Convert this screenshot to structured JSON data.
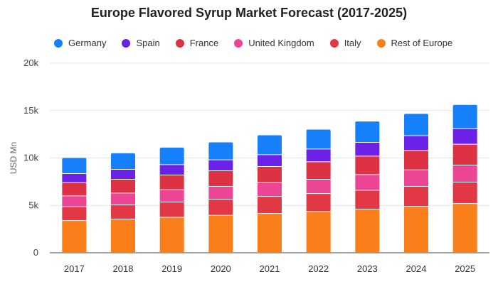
{
  "chart_data": {
    "type": "bar",
    "stacked": true,
    "title": "Europe Flavored Syrup Market Forecast (2017-2025)",
    "ylabel": "USD Mn",
    "xlabel": "",
    "ylim": [
      0,
      20000
    ],
    "yticks": [
      0,
      5000,
      10000,
      15000,
      20000
    ],
    "ytick_labels": [
      "0",
      "5k",
      "10k",
      "15k",
      "20k"
    ],
    "grid": true,
    "legend_position": "top-left",
    "categories": [
      "2017",
      "2018",
      "2019",
      "2020",
      "2021",
      "2022",
      "2023",
      "2024",
      "2025"
    ],
    "series": [
      {
        "name": "Rest of Europe",
        "color": "#fa7f1b",
        "values": [
          3400,
          3550,
          3750,
          3950,
          4150,
          4350,
          4600,
          4900,
          5200
        ]
      },
      {
        "name": "Italy",
        "color": "#e23744",
        "values": [
          1450,
          1500,
          1600,
          1700,
          1800,
          1900,
          2000,
          2100,
          2250
        ]
      },
      {
        "name": "United Kingdom",
        "color": "#ec4593",
        "values": [
          1150,
          1250,
          1300,
          1350,
          1450,
          1500,
          1650,
          1750,
          1800
        ]
      },
      {
        "name": "France",
        "color": "#dd3244",
        "values": [
          1400,
          1450,
          1550,
          1650,
          1700,
          1850,
          1950,
          2050,
          2200
        ]
      },
      {
        "name": "Spain",
        "color": "#6b21e8",
        "values": [
          950,
          1050,
          1100,
          1150,
          1250,
          1350,
          1450,
          1550,
          1650
        ]
      },
      {
        "name": "Germany",
        "color": "#1580f9",
        "values": [
          1650,
          1700,
          1800,
          1850,
          2050,
          2050,
          2200,
          2300,
          2500
        ]
      }
    ]
  },
  "legend_order": [
    "Germany",
    "Spain",
    "France",
    "United Kingdom",
    "Italy",
    "Rest of Europe"
  ]
}
